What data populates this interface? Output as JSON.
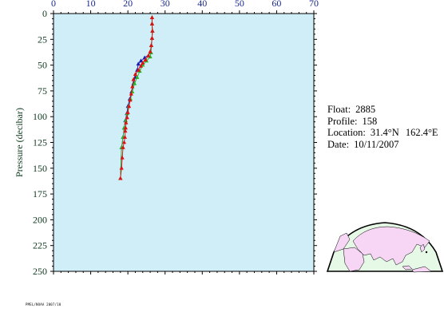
{
  "chart_data": {
    "type": "scatter",
    "title": "",
    "xlabel": "",
    "ylabel": "Pressure (decibar)",
    "xlim": [
      0,
      70
    ],
    "ylim": [
      0,
      250
    ],
    "y_inverted": true,
    "x_ticks": [
      0,
      10,
      20,
      30,
      40,
      50,
      60,
      70
    ],
    "x_tick_labels": [
      "0",
      "10",
      "20",
      "30",
      "40",
      "50",
      "60",
      "70"
    ],
    "y_ticks": [
      0,
      25,
      50,
      75,
      100,
      125,
      150,
      175,
      200,
      225,
      250
    ],
    "y_tick_labels": [
      "0",
      "25",
      "50",
      "75",
      "100",
      "125",
      "150",
      "175",
      "200",
      "225",
      "250"
    ],
    "grid": false,
    "background": "#cfeef7",
    "series": [
      {
        "color": "#1a1ab0",
        "x": [
          26.5,
          26.5,
          26.6,
          26.5,
          26.3,
          26.2,
          24.5,
          23.5,
          22.8,
          22.5,
          22.0,
          21.5,
          21.0,
          20.5,
          20.0,
          19.7,
          19.3,
          19.0,
          18.7,
          18.3,
          18.0
        ],
        "y": [
          4,
          10,
          17,
          24,
          31,
          38,
          43,
          46,
          49,
          55,
          62,
          68,
          76,
          83,
          90,
          97,
          104,
          111,
          120,
          130,
          160
        ]
      },
      {
        "color": "#22b822",
        "x": [
          26.5,
          26.5,
          26.6,
          26.5,
          26.3,
          26.2,
          26.0,
          25.0,
          24.0,
          23.2,
          22.5,
          21.8,
          21.2,
          20.7,
          20.2,
          19.8,
          19.4,
          19.0,
          18.7,
          18.3,
          18.0
        ],
        "y": [
          4,
          10,
          17,
          24,
          31,
          38,
          42,
          46,
          50,
          56,
          62,
          68,
          76,
          83,
          90,
          97,
          104,
          111,
          120,
          130,
          160
        ]
      },
      {
        "color": "#e01010",
        "x": [
          26.5,
          26.5,
          26.6,
          26.5,
          26.3,
          26.0,
          25.5,
          24.7,
          24.0,
          23.5,
          22.8,
          22.0,
          21.5,
          21.2,
          20.9,
          20.6,
          20.3,
          20.0,
          19.8,
          19.5,
          19.4,
          19.3,
          19.2,
          19.0,
          18.7,
          18.5,
          18.3,
          18.0
        ],
        "y": [
          4,
          10,
          17,
          24,
          31,
          37,
          41,
          45,
          48,
          51,
          55,
          59,
          64,
          71,
          78,
          84,
          90,
          96,
          101,
          106,
          111,
          114,
          120,
          125,
          130,
          140,
          150,
          160
        ]
      }
    ]
  },
  "info": {
    "float_label": "Float:",
    "float_value": "2885",
    "profile_label": "Profile:",
    "profile_value": "158",
    "location_label": "Location:",
    "location_lat": "31.4°N",
    "location_lon": "162.4°E",
    "date_label": "Date:",
    "date_value": "10/11/2007"
  },
  "map": {
    "ocean_color": "#e6f8e6",
    "land_color": "#f6d6f4"
  },
  "stamp_text": "PMEL/NOAA 2007/10"
}
